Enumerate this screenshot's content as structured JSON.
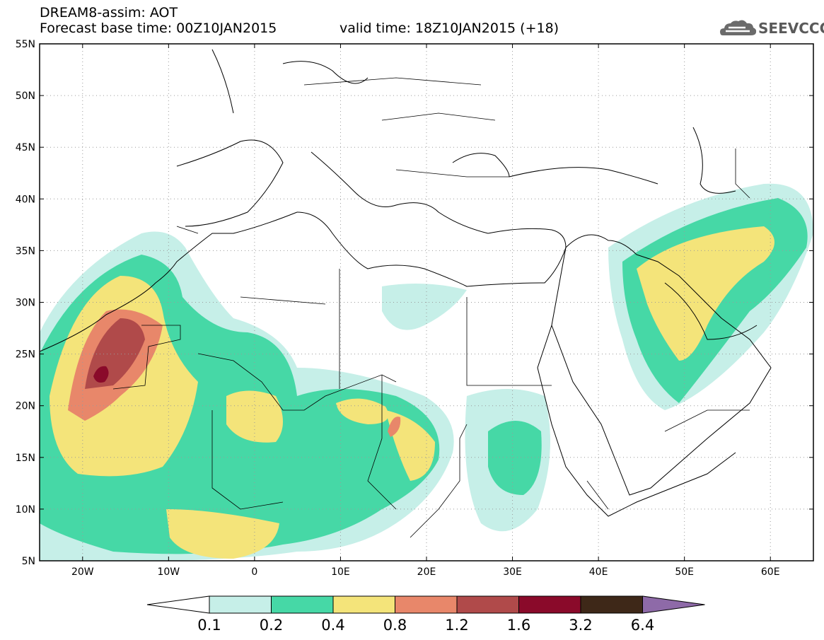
{
  "header": {
    "title": "DREAM8-assim: AOT",
    "base_time": "Forecast base time: 00Z10JAN2015",
    "valid_time": "valid time: 18Z10JAN2015 (+18)"
  },
  "logo": {
    "text": "SEEVCCC",
    "icon": "cloud-icon"
  },
  "map": {
    "lat_labels": [
      "55N",
      "50N",
      "45N",
      "40N",
      "35N",
      "30N",
      "25N",
      "20N",
      "15N",
      "10N",
      "5N"
    ],
    "lon_labels": [
      "20W",
      "10W",
      "0",
      "10E",
      "20E",
      "30E",
      "40E",
      "50E",
      "60E"
    ],
    "lon_range": [
      -25,
      65
    ],
    "lat_range": [
      5,
      55
    ],
    "grid": "dotted"
  },
  "legend": {
    "levels": [
      "0.1",
      "0.2",
      "0.4",
      "0.8",
      "1.2",
      "1.6",
      "3.2",
      "6.4"
    ],
    "colors": [
      "#c6efe8",
      "#46d8a6",
      "#f4e47a",
      "#e8876a",
      "#b04a4a",
      "#8a0a2a",
      "#3e2818",
      "#8e6aa8"
    ]
  }
}
